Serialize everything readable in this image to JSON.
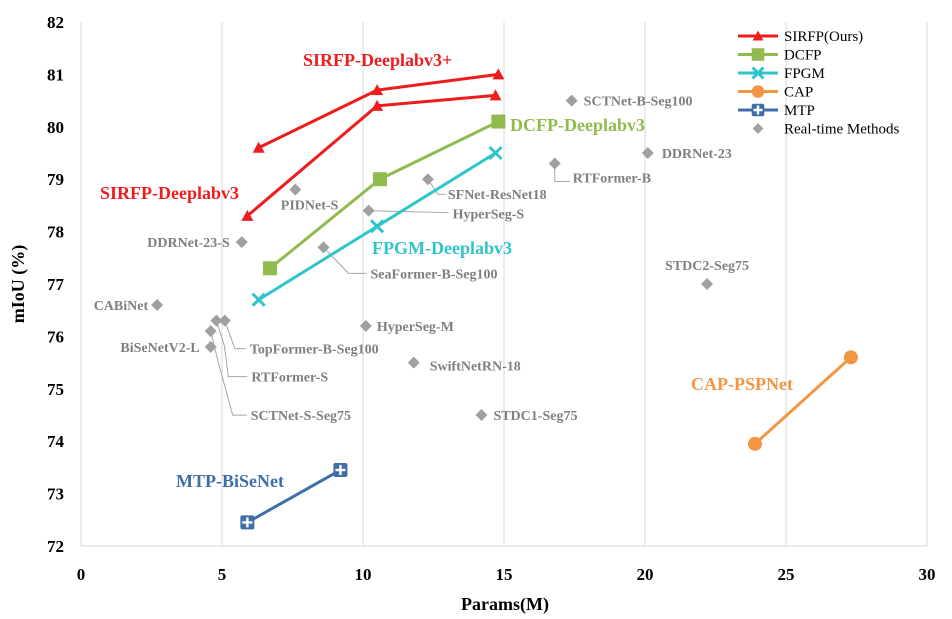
{
  "chart_data": {
    "type": "scatter",
    "xlabel": "Params(M)",
    "ylabel": "mIoU (%)",
    "xlim": [
      0,
      30
    ],
    "ylim": [
      72,
      82
    ],
    "x_ticks": [
      "0",
      "5",
      "10",
      "15",
      "20",
      "25",
      "30"
    ],
    "y_ticks": [
      "72",
      "73",
      "74",
      "75",
      "76",
      "77",
      "78",
      "79",
      "80",
      "81",
      "82"
    ],
    "grid": "vertical",
    "legend_position": "top-right",
    "legend": [
      "SIRFP(Ours)",
      "DCFP",
      "FPGM",
      "CAP",
      "MTP",
      "Real-time Methods"
    ],
    "series": [
      {
        "name": "SIRFP(Ours)",
        "color": "#ee1c1c",
        "marker": "triangle",
        "lines": [
          {
            "label": "SIRFP-Deeplabv3+",
            "points": [
              [
                6.3,
                79.6
              ],
              [
                10.5,
                80.7
              ],
              [
                14.8,
                81.0
              ]
            ]
          },
          {
            "label": "SIRFP-Deeplabv3",
            "points": [
              [
                5.9,
                78.3
              ],
              [
                10.5,
                80.4
              ],
              [
                14.7,
                80.6
              ]
            ]
          }
        ]
      },
      {
        "name": "DCFP",
        "color": "#92bb4e",
        "marker": "square",
        "lines": [
          {
            "label": "DCFP-Deeplabv3",
            "points": [
              [
                6.7,
                77.3
              ],
              [
                10.6,
                79.0
              ],
              [
                14.8,
                80.1
              ]
            ]
          }
        ]
      },
      {
        "name": "FPGM",
        "color": "#2fc5c9",
        "marker": "x",
        "lines": [
          {
            "label": "FPGM-Deeplabv3",
            "points": [
              [
                6.3,
                76.7
              ],
              [
                10.5,
                78.1
              ],
              [
                14.7,
                79.5
              ]
            ]
          }
        ]
      },
      {
        "name": "CAP",
        "color": "#f39543",
        "marker": "circle",
        "lines": [
          {
            "label": "CAP-PSPNet",
            "points": [
              [
                23.9,
                73.95
              ],
              [
                27.3,
                75.6
              ]
            ]
          }
        ]
      },
      {
        "name": "MTP",
        "color": "#3f6fa8",
        "marker": "plus",
        "lines": [
          {
            "label": "MTP-BiSeNet",
            "points": [
              [
                5.9,
                72.45
              ],
              [
                9.2,
                73.45
              ]
            ]
          }
        ]
      }
    ],
    "realtime": {
      "name": "Real-time Methods",
      "color": "#a0a0a0",
      "points": [
        {
          "label": "SCTNet-B-Seg100",
          "x": 17.4,
          "y": 80.5
        },
        {
          "label": "DDRNet-23",
          "x": 20.1,
          "y": 79.5
        },
        {
          "label": "RTFormer-B",
          "x": 16.8,
          "y": 79.3
        },
        {
          "label": "SFNet-ResNet18",
          "x": 12.3,
          "y": 79.0
        },
        {
          "label": "PIDNet-S",
          "x": 7.6,
          "y": 78.8
        },
        {
          "label": "HyperSeg-S",
          "x": 10.2,
          "y": 78.4
        },
        {
          "label": "DDRNet-23-S",
          "x": 5.7,
          "y": 77.8
        },
        {
          "label": "SeaFormer-B-Seg100",
          "x": 8.6,
          "y": 77.7
        },
        {
          "label": "STDC2-Seg75",
          "x": 22.2,
          "y": 77.0
        },
        {
          "label": "CABiNet",
          "x": 2.7,
          "y": 76.6
        },
        {
          "label": "HyperSeg-M",
          "x": 10.1,
          "y": 76.2
        },
        {
          "label": "TopFormer-B-Seg100",
          "x": 5.1,
          "y": 76.3
        },
        {
          "label": "RTFormer-S",
          "x": 4.8,
          "y": 76.3
        },
        {
          "label": "SCTNet-S-Seg75",
          "x": 4.6,
          "y": 76.1
        },
        {
          "label": "BiSeNetV2-L",
          "x": 4.6,
          "y": 75.8
        },
        {
          "label": "SwiftNetRN-18",
          "x": 11.8,
          "y": 75.5
        },
        {
          "label": "STDC1-Seg75",
          "x": 14.2,
          "y": 74.5
        }
      ]
    }
  }
}
